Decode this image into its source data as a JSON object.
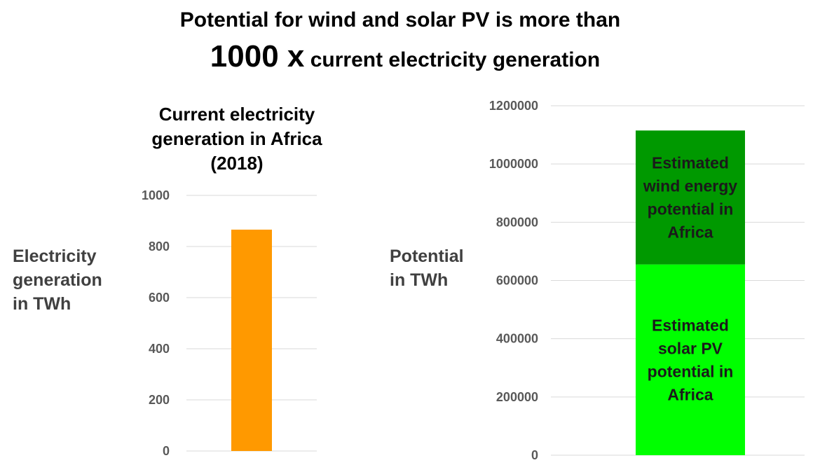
{
  "title": {
    "line1": "Potential for wind and solar PV is more than",
    "line2_big": "1000 x",
    "line2_small": " current electricity generation"
  },
  "colors": {
    "current_bar": "#FF9900",
    "solar": "#00FF00",
    "wind": "#009900",
    "grid": "#D9D9D9",
    "tick_text": "#595959",
    "axis_label": "#404040"
  },
  "chart_data": [
    {
      "type": "bar",
      "title": "Current electricity generation in Africa (2018)",
      "ylabel": "Electricity generation in TWh",
      "categories": [
        ""
      ],
      "values": [
        866
      ],
      "ylim": [
        0,
        1000
      ],
      "yticks": [
        0,
        200,
        400,
        600,
        800,
        1000
      ],
      "grid": true
    },
    {
      "type": "bar",
      "stacked": true,
      "title": "",
      "ylabel": "Potential in TWh",
      "categories": [
        ""
      ],
      "series": [
        {
          "name": "Estimated solar PV potential in Africa",
          "values": [
            655000
          ]
        },
        {
          "name": "Estimated wind energy potential in Africa",
          "values": [
            460000
          ]
        }
      ],
      "ylim": [
        0,
        1200000
      ],
      "yticks": [
        0,
        200000,
        400000,
        600000,
        800000,
        1000000,
        1200000
      ],
      "grid": true
    }
  ]
}
